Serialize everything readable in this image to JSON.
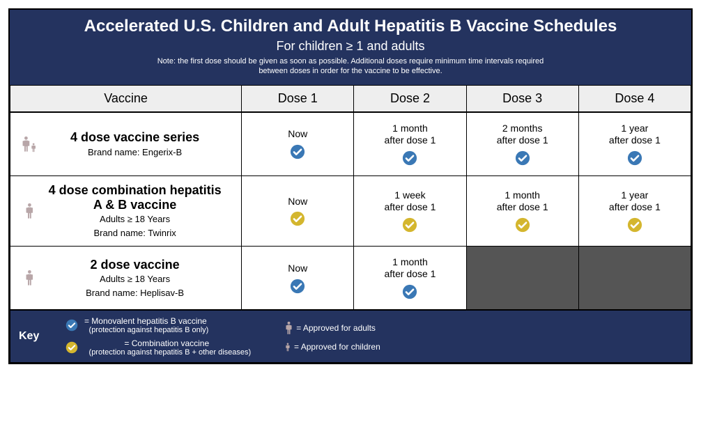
{
  "colors": {
    "header_bg": "#24335f",
    "header_text": "#ffffff",
    "th_bg": "#eeeeee",
    "blue_check": "#3a78b5",
    "gold_check": "#d4b62e",
    "disabled_bg": "#555555",
    "person_fill": "#b8a6a8",
    "border": "#000000"
  },
  "header": {
    "title": "Accelerated U.S. Children and Adult Hepatitis B Vaccine Schedules",
    "subtitle": "For children ≥ 1 and adults",
    "note": "Note: the first dose should be given as soon as possible. Additional doses require minimum time intervals required between doses in order for the vaccine to be effective."
  },
  "columns": [
    "Vaccine",
    "Dose 1",
    "Dose 2",
    "Dose 3",
    "Dose 4"
  ],
  "col_widths": [
    "34%",
    "16.5%",
    "16.5%",
    "16.5%",
    "16.5%"
  ],
  "rows": [
    {
      "audience": [
        "adult",
        "child"
      ],
      "title": "4 dose vaccine series",
      "details": [
        "Brand name: Engerix-B"
      ],
      "doses": [
        {
          "line1": "Now",
          "check": "blue"
        },
        {
          "line1": "1 month",
          "line2": "after dose 1",
          "check": "blue"
        },
        {
          "line1": "2 months",
          "line2": "after dose 1",
          "check": "blue"
        },
        {
          "line1": "1 year",
          "line2": "after dose 1",
          "check": "blue"
        }
      ]
    },
    {
      "audience": [
        "adult"
      ],
      "title": "4 dose combination hepatitis A & B vaccine",
      "details": [
        "Adults ≥ 18 Years",
        "Brand name: Twinrix"
      ],
      "doses": [
        {
          "line1": "Now",
          "check": "gold"
        },
        {
          "line1": "1 week",
          "line2": "after dose 1",
          "check": "gold"
        },
        {
          "line1": "1 month",
          "line2": "after dose 1",
          "check": "gold"
        },
        {
          "line1": "1 year",
          "line2": "after dose 1",
          "check": "gold"
        }
      ]
    },
    {
      "audience": [
        "adult"
      ],
      "title": "2 dose vaccine",
      "details": [
        "Adults ≥ 18 Years",
        "Brand name: Heplisav-B"
      ],
      "doses": [
        {
          "line1": "Now",
          "check": "blue"
        },
        {
          "line1": "1 month",
          "line2": "after dose 1",
          "check": "blue"
        },
        {
          "disabled": true
        },
        {
          "disabled": true
        }
      ]
    }
  ],
  "key": {
    "label": "Key",
    "items_left": [
      {
        "check": "blue",
        "text": "= Monovalent hepatitis B vaccine",
        "sub": "(protection against hepatitis B only)"
      },
      {
        "check": "gold",
        "text": "= Combination vaccine",
        "sub": "(protection against hepatitis B + other diseases)"
      }
    ],
    "items_right": [
      {
        "icon": "adult",
        "text": "= Approved for adults"
      },
      {
        "icon": "child",
        "text": "= Approved for children"
      }
    ]
  }
}
